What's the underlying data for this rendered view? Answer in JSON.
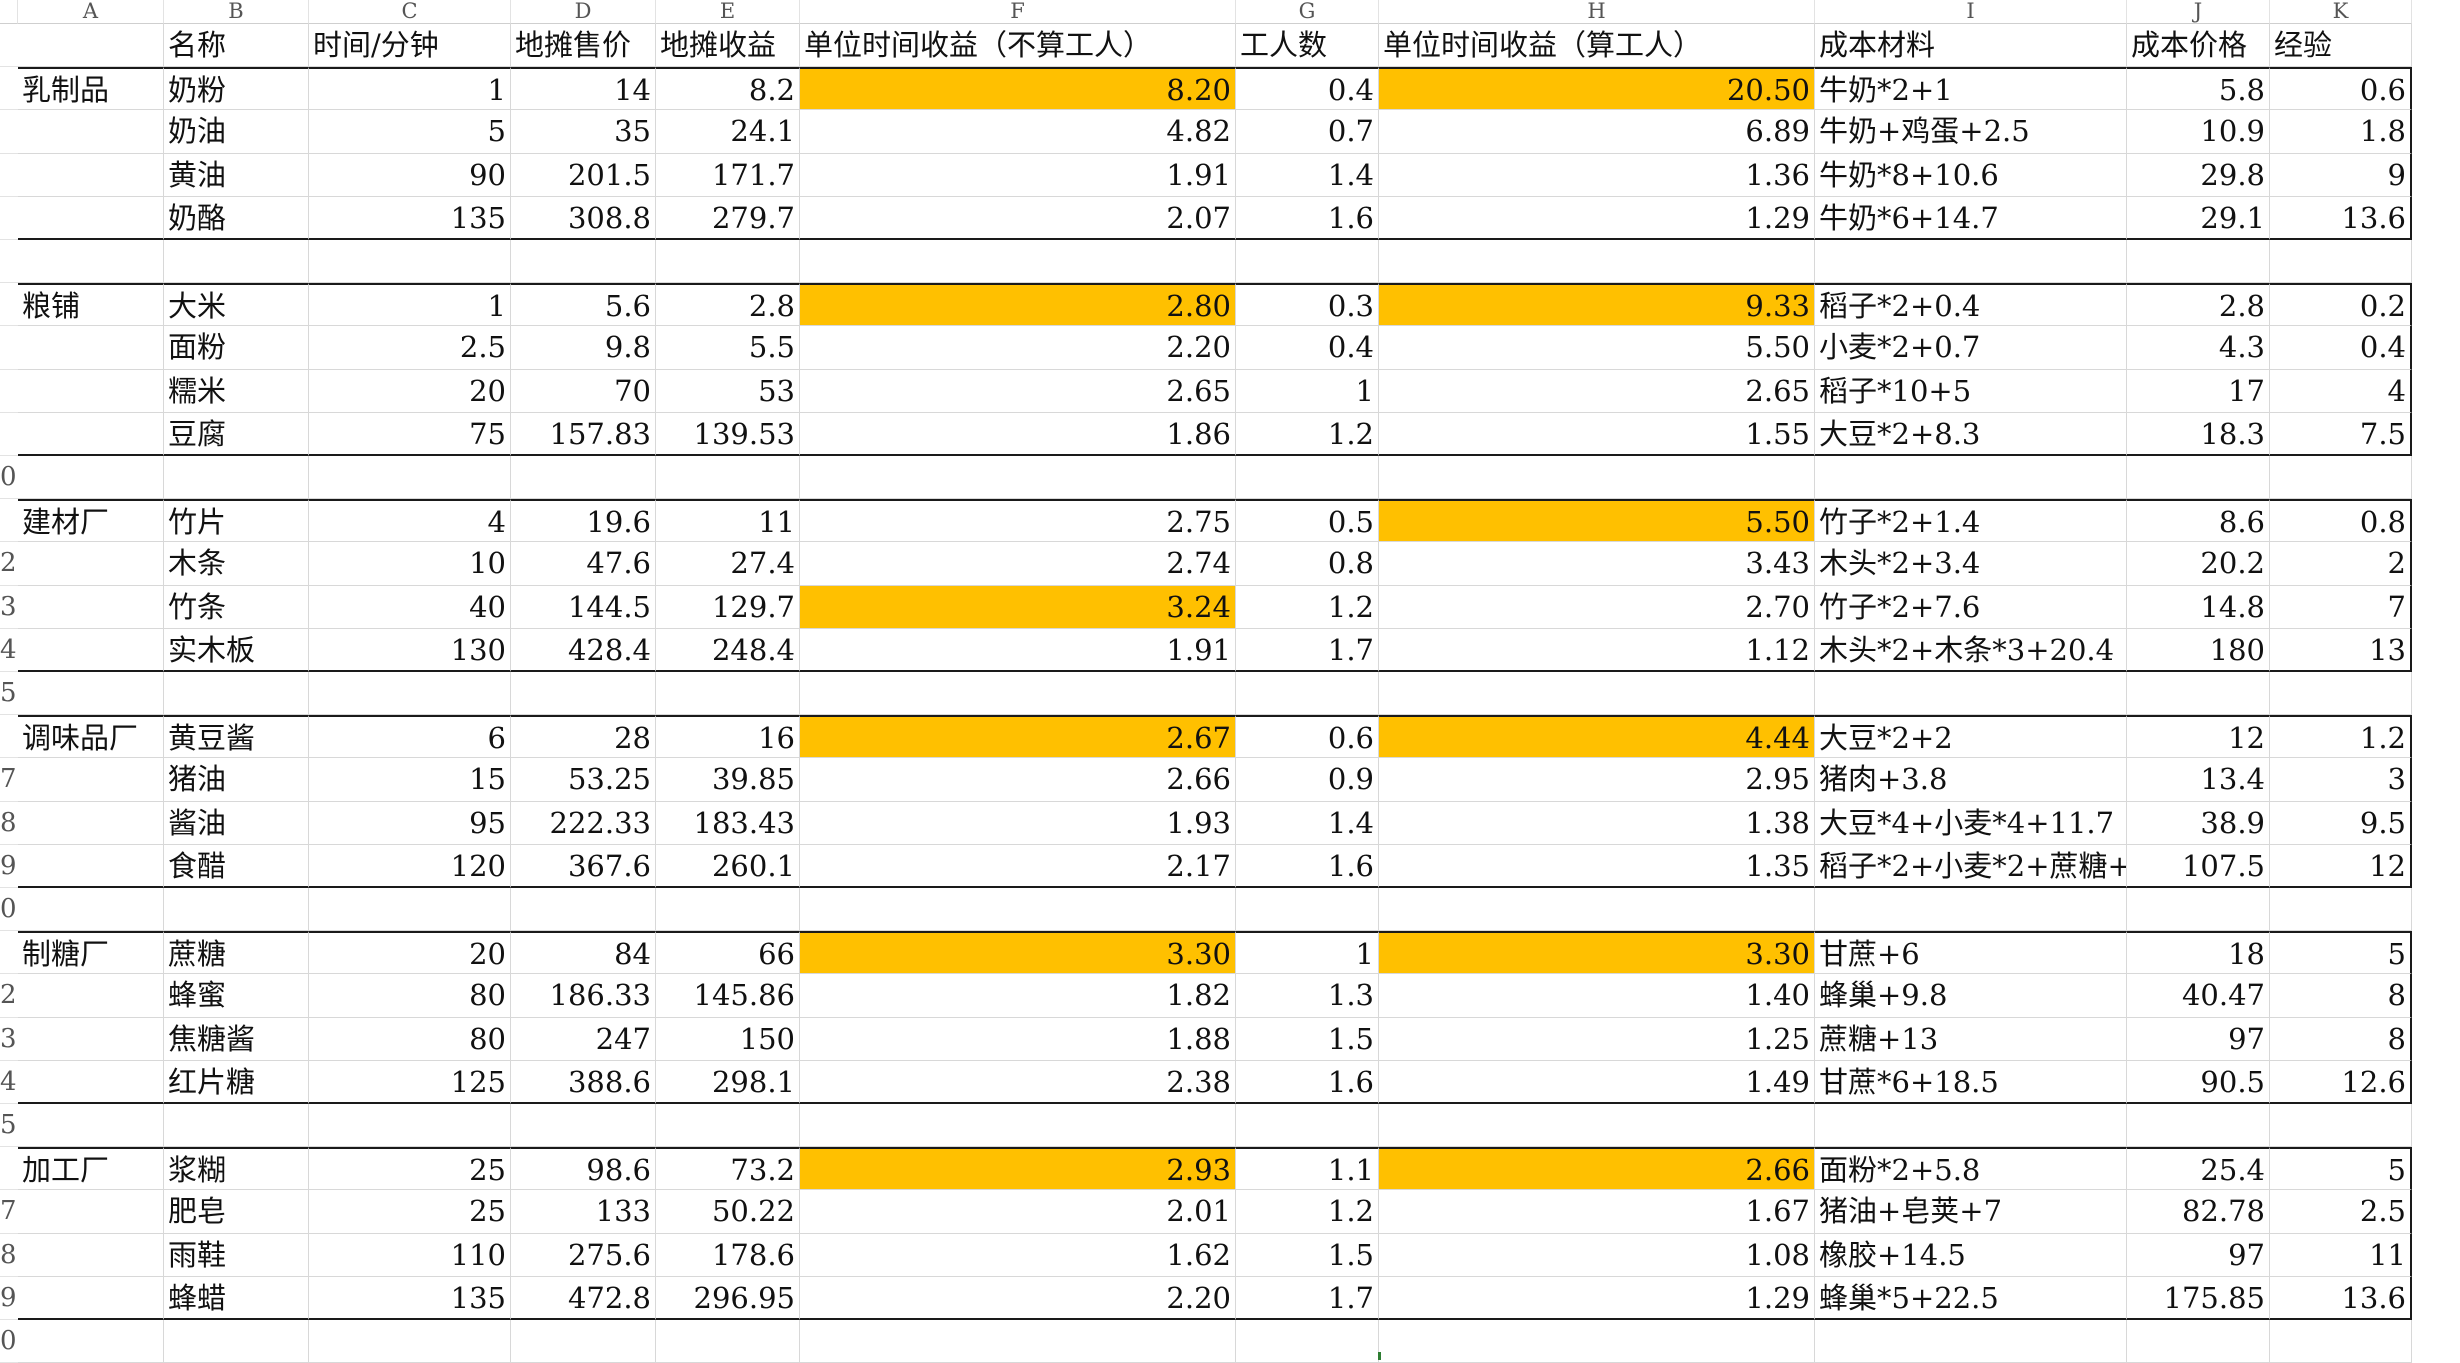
{
  "sheet": {
    "column_letters": [
      "A",
      "B",
      "C",
      "D",
      "E",
      "F",
      "G",
      "H",
      "I",
      "J",
      "K"
    ],
    "header": [
      "",
      "名称",
      "时间/分钟",
      "地摊售价",
      "地摊收益",
      "单位时间收益（不算工人）",
      "工人数",
      "单位时间收益（算工人）",
      "成本材料",
      "成本价格",
      "经验"
    ],
    "row_numbers": [
      "",
      "",
      "",
      "",
      "",
      "",
      "",
      "",
      "",
      "",
      "0",
      "",
      "2",
      "3",
      "4",
      "5",
      "",
      "7",
      "8",
      "9",
      "0",
      "",
      "2",
      "3",
      "4",
      "5",
      "",
      "7",
      "8",
      "9",
      "0",
      ""
    ],
    "groups": [
      {
        "name": "乳制品",
        "rows": [
          {
            "name": "奶粉",
            "time": "1",
            "price": "14",
            "profit": "8.2",
            "rate_no_worker": "8.20",
            "workers": "0.4",
            "rate_worker": "20.50",
            "materials": "牛奶*2+1",
            "cost": "5.8",
            "exp": "0.6",
            "hl_f": true,
            "hl_h": true
          },
          {
            "name": "奶油",
            "time": "5",
            "price": "35",
            "profit": "24.1",
            "rate_no_worker": "4.82",
            "workers": "0.7",
            "rate_worker": "6.89",
            "materials": "牛奶+鸡蛋+2.5",
            "cost": "10.9",
            "exp": "1.8",
            "hl_f": false,
            "hl_h": false
          },
          {
            "name": "黄油",
            "time": "90",
            "price": "201.5",
            "profit": "171.7",
            "rate_no_worker": "1.91",
            "workers": "1.4",
            "rate_worker": "1.36",
            "materials": "牛奶*8+10.6",
            "cost": "29.8",
            "exp": "9",
            "hl_f": false,
            "hl_h": false
          },
          {
            "name": "奶酪",
            "time": "135",
            "price": "308.8",
            "profit": "279.7",
            "rate_no_worker": "2.07",
            "workers": "1.6",
            "rate_worker": "1.29",
            "materials": "牛奶*6+14.7",
            "cost": "29.1",
            "exp": "13.6",
            "hl_f": false,
            "hl_h": false
          }
        ]
      },
      {
        "name": "粮铺",
        "rows": [
          {
            "name": "大米",
            "time": "1",
            "price": "5.6",
            "profit": "2.8",
            "rate_no_worker": "2.80",
            "workers": "0.3",
            "rate_worker": "9.33",
            "materials": "稻子*2+0.4",
            "cost": "2.8",
            "exp": "0.2",
            "hl_f": true,
            "hl_h": true
          },
          {
            "name": "面粉",
            "time": "2.5",
            "price": "9.8",
            "profit": "5.5",
            "rate_no_worker": "2.20",
            "workers": "0.4",
            "rate_worker": "5.50",
            "materials": "小麦*2+0.7",
            "cost": "4.3",
            "exp": "0.4",
            "hl_f": false,
            "hl_h": false
          },
          {
            "name": "糯米",
            "time": "20",
            "price": "70",
            "profit": "53",
            "rate_no_worker": "2.65",
            "workers": "1",
            "rate_worker": "2.65",
            "materials": "稻子*10+5",
            "cost": "17",
            "exp": "4",
            "hl_f": false,
            "hl_h": false
          },
          {
            "name": "豆腐",
            "time": "75",
            "price": "157.83",
            "profit": "139.53",
            "rate_no_worker": "1.86",
            "workers": "1.2",
            "rate_worker": "1.55",
            "materials": "大豆*2+8.3",
            "cost": "18.3",
            "exp": "7.5",
            "hl_f": false,
            "hl_h": false
          }
        ]
      },
      {
        "name": "建材厂",
        "rows": [
          {
            "name": "竹片",
            "time": "4",
            "price": "19.6",
            "profit": "11",
            "rate_no_worker": "2.75",
            "workers": "0.5",
            "rate_worker": "5.50",
            "materials": "竹子*2+1.4",
            "cost": "8.6",
            "exp": "0.8",
            "hl_f": false,
            "hl_h": true
          },
          {
            "name": "木条",
            "time": "10",
            "price": "47.6",
            "profit": "27.4",
            "rate_no_worker": "2.74",
            "workers": "0.8",
            "rate_worker": "3.43",
            "materials": "木头*2+3.4",
            "cost": "20.2",
            "exp": "2",
            "hl_f": false,
            "hl_h": false
          },
          {
            "name": "竹条",
            "time": "40",
            "price": "144.5",
            "profit": "129.7",
            "rate_no_worker": "3.24",
            "workers": "1.2",
            "rate_worker": "2.70",
            "materials": "竹子*2+7.6",
            "cost": "14.8",
            "exp": "7",
            "hl_f": true,
            "hl_h": false
          },
          {
            "name": "实木板",
            "time": "130",
            "price": "428.4",
            "profit": "248.4",
            "rate_no_worker": "1.91",
            "workers": "1.7",
            "rate_worker": "1.12",
            "materials": "木头*2+木条*3+20.4",
            "cost": "180",
            "exp": "13",
            "hl_f": false,
            "hl_h": false
          }
        ]
      },
      {
        "name": "调味品厂",
        "rows": [
          {
            "name": "黄豆酱",
            "time": "6",
            "price": "28",
            "profit": "16",
            "rate_no_worker": "2.67",
            "workers": "0.6",
            "rate_worker": "4.44",
            "materials": "大豆*2+2",
            "cost": "12",
            "exp": "1.2",
            "hl_f": true,
            "hl_h": true
          },
          {
            "name": "猪油",
            "time": "15",
            "price": "53.25",
            "profit": "39.85",
            "rate_no_worker": "2.66",
            "workers": "0.9",
            "rate_worker": "2.95",
            "materials": "猪肉+3.8",
            "cost": "13.4",
            "exp": "3",
            "hl_f": false,
            "hl_h": false
          },
          {
            "name": "酱油",
            "time": "95",
            "price": "222.33",
            "profit": "183.43",
            "rate_no_worker": "1.93",
            "workers": "1.4",
            "rate_worker": "1.38",
            "materials": "大豆*4+小麦*4+11.7",
            "cost": "38.9",
            "exp": "9.5",
            "hl_f": false,
            "hl_h": false
          },
          {
            "name": "食醋",
            "time": "120",
            "price": "367.6",
            "profit": "260.1",
            "rate_no_worker": "2.17",
            "workers": "1.6",
            "rate_worker": "1.35",
            "materials": "稻子*2+小麦*2+蔗糖+",
            "cost": "107.5",
            "exp": "12",
            "hl_f": false,
            "hl_h": false
          }
        ]
      },
      {
        "name": "制糖厂",
        "rows": [
          {
            "name": "蔗糖",
            "time": "20",
            "price": "84",
            "profit": "66",
            "rate_no_worker": "3.30",
            "workers": "1",
            "rate_worker": "3.30",
            "materials": "甘蔗+6",
            "cost": "18",
            "exp": "5",
            "hl_f": true,
            "hl_h": true
          },
          {
            "name": "蜂蜜",
            "time": "80",
            "price": "186.33",
            "profit": "145.86",
            "rate_no_worker": "1.82",
            "workers": "1.3",
            "rate_worker": "1.40",
            "materials": "蜂巢+9.8",
            "cost": "40.47",
            "exp": "8",
            "hl_f": false,
            "hl_h": false
          },
          {
            "name": "焦糖酱",
            "time": "80",
            "price": "247",
            "profit": "150",
            "rate_no_worker": "1.88",
            "workers": "1.5",
            "rate_worker": "1.25",
            "materials": "蔗糖+13",
            "cost": "97",
            "exp": "8",
            "hl_f": false,
            "hl_h": false
          },
          {
            "name": "红片糖",
            "time": "125",
            "price": "388.6",
            "profit": "298.1",
            "rate_no_worker": "2.38",
            "workers": "1.6",
            "rate_worker": "1.49",
            "materials": "甘蔗*6+18.5",
            "cost": "90.5",
            "exp": "12.6",
            "hl_f": false,
            "hl_h": false
          }
        ]
      },
      {
        "name": "加工厂",
        "rows": [
          {
            "name": "浆糊",
            "time": "25",
            "price": "98.6",
            "profit": "73.2",
            "rate_no_worker": "2.93",
            "workers": "1.1",
            "rate_worker": "2.66",
            "materials": "面粉*2+5.8",
            "cost": "25.4",
            "exp": "5",
            "hl_f": true,
            "hl_h": true
          },
          {
            "name": "肥皂",
            "time": "25",
            "price": "133",
            "profit": "50.22",
            "rate_no_worker": "2.01",
            "workers": "1.2",
            "rate_worker": "1.67",
            "materials": "猪油+皂荚+7",
            "cost": "82.78",
            "exp": "2.5",
            "hl_f": false,
            "hl_h": false
          },
          {
            "name": "雨鞋",
            "time": "110",
            "price": "275.6",
            "profit": "178.6",
            "rate_no_worker": "1.62",
            "workers": "1.5",
            "rate_worker": "1.08",
            "materials": "橡胶+14.5",
            "cost": "97",
            "exp": "11",
            "hl_f": false,
            "hl_h": false
          },
          {
            "name": "蜂蜡",
            "time": "135",
            "price": "472.8",
            "profit": "296.95",
            "rate_no_worker": "2.20",
            "workers": "1.7",
            "rate_worker": "1.29",
            "materials": "蜂巢*5+22.5",
            "cost": "175.85",
            "exp": "13.6",
            "hl_f": false,
            "hl_h": false
          }
        ]
      }
    ],
    "colors": {
      "highlight": "#ffc000",
      "border": "#1a1a1a",
      "gridline": "#d8d8d8"
    }
  }
}
